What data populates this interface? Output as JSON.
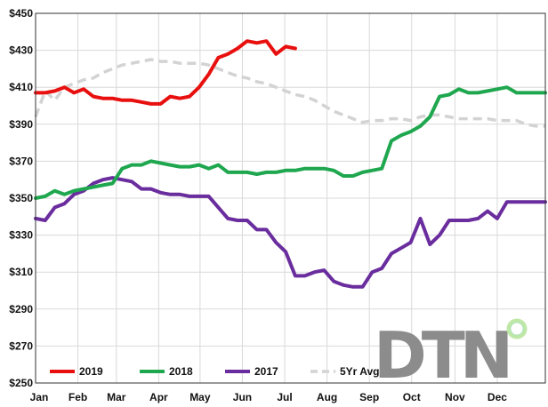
{
  "chart_data": {
    "type": "line",
    "title": "",
    "xlabel": "",
    "ylabel": "",
    "ylim": [
      250,
      450
    ],
    "yticks": [
      250,
      270,
      290,
      310,
      330,
      350,
      370,
      390,
      410,
      430,
      450
    ],
    "ytick_labels": [
      "$250",
      "$270",
      "$290",
      "$310",
      "$330",
      "$350",
      "$370",
      "$390",
      "$410",
      "$430",
      "$450"
    ],
    "xlim": [
      0,
      53
    ],
    "x_tick_labels": [
      "Jan",
      "Feb",
      "Mar",
      "Apr",
      "May",
      "Jun",
      "Jul",
      "Aug",
      "Sep",
      "Oct",
      "Nov",
      "Dec"
    ],
    "x_tick_weeks": [
      0,
      4.4,
      8.4,
      12.8,
      17.1,
      21.5,
      25.9,
      30.3,
      34.7,
      39.1,
      43.6,
      48
    ],
    "grid": true,
    "legend_position": "bottom-left",
    "series": [
      {
        "name": "2019",
        "color": "#e8100f",
        "dash": false,
        "x": [
          0,
          1,
          2,
          3,
          4,
          5,
          6,
          7,
          8,
          9,
          10,
          11,
          12,
          13,
          14,
          15,
          16,
          17,
          18,
          19,
          20,
          21,
          22,
          23,
          24,
          25,
          26,
          27
        ],
        "y": [
          407,
          407,
          408,
          410,
          407,
          409,
          405,
          404,
          404,
          403,
          403,
          402,
          401,
          401,
          405,
          404,
          405,
          410,
          417,
          426,
          428,
          431,
          435,
          434,
          435,
          428,
          432,
          431
        ]
      },
      {
        "name": "2018",
        "color": "#1fa74f",
        "dash": false,
        "x": [
          0,
          1,
          2,
          3,
          4,
          5,
          6,
          7,
          8,
          9,
          10,
          11,
          12,
          13,
          14,
          15,
          16,
          17,
          18,
          19,
          20,
          21,
          22,
          23,
          24,
          25,
          26,
          27,
          28,
          29,
          30,
          31,
          32,
          33,
          34,
          35,
          36,
          37,
          38,
          39,
          40,
          41,
          42,
          43,
          44,
          45,
          46,
          47,
          48,
          49,
          50,
          51,
          52,
          53
        ],
        "y": [
          350,
          351,
          354,
          352,
          354,
          355,
          356,
          357,
          358,
          366,
          368,
          368,
          370,
          369,
          368,
          367,
          367,
          368,
          366,
          368,
          364,
          364,
          364,
          363,
          364,
          364,
          365,
          365,
          366,
          366,
          366,
          365,
          362,
          362,
          364,
          365,
          366,
          381,
          384,
          386,
          389,
          394,
          405,
          406,
          409,
          407,
          407,
          408,
          409,
          410,
          407,
          407,
          407,
          407
        ]
      },
      {
        "name": "2017",
        "color": "#6a2d9e",
        "dash": false,
        "x": [
          0,
          1,
          2,
          3,
          4,
          5,
          6,
          7,
          8,
          9,
          10,
          11,
          12,
          13,
          14,
          15,
          16,
          17,
          18,
          19,
          20,
          21,
          22,
          23,
          24,
          25,
          26,
          27,
          28,
          29,
          30,
          31,
          32,
          33,
          34,
          35,
          36,
          37,
          38,
          39,
          40,
          41,
          42,
          43,
          44,
          45,
          46,
          47,
          48,
          49,
          50,
          51,
          52,
          53
        ],
        "y": [
          339,
          338,
          345,
          347,
          352,
          354,
          358,
          360,
          361,
          360,
          359,
          355,
          355,
          353,
          352,
          352,
          351,
          351,
          351,
          345,
          339,
          338,
          338,
          333,
          333,
          326,
          321,
          308,
          308,
          310,
          311,
          305,
          303,
          302,
          302,
          310,
          312,
          320,
          323,
          326,
          339,
          325,
          330,
          338,
          338,
          338,
          339,
          343,
          339,
          348,
          348,
          348,
          348,
          348
        ]
      },
      {
        "name": "5Yr Avg",
        "color": "#d3d3d3",
        "dash": true,
        "x": [
          0,
          1,
          2,
          3,
          4,
          5,
          6,
          7,
          8,
          9,
          10,
          11,
          12,
          13,
          14,
          15,
          16,
          17,
          18,
          19,
          20,
          21,
          22,
          23,
          24,
          25,
          26,
          27,
          28,
          29,
          30,
          31,
          32,
          33,
          34,
          35,
          36,
          37,
          38,
          39,
          40,
          41,
          42,
          43,
          44,
          45,
          46,
          47,
          48,
          49,
          50,
          51,
          52,
          53
        ],
        "y": [
          394,
          408,
          403,
          410,
          412,
          414,
          415,
          418,
          420,
          422,
          423,
          424,
          425,
          424,
          424,
          423,
          423,
          423,
          422,
          420,
          418,
          416,
          415,
          413,
          412,
          410,
          408,
          406,
          405,
          403,
          400,
          397,
          395,
          393,
          391,
          392,
          392,
          393,
          393,
          392,
          394,
          395,
          395,
          394,
          393,
          393,
          393,
          393,
          392,
          392,
          392,
          390,
          389,
          389
        ]
      }
    ],
    "legend": [
      {
        "label": "2019",
        "color": "#e8100f",
        "dash": false
      },
      {
        "label": "2018",
        "color": "#1fa74f",
        "dash": false
      },
      {
        "label": "2017",
        "color": "#6a2d9e",
        "dash": false
      },
      {
        "label": "5Yr Avg",
        "color": "#d3d3d3",
        "dash": true
      }
    ]
  },
  "watermark": {
    "text": "DTN",
    "color": "#8c8c8c",
    "dot_gradient": [
      "#8fd6f0",
      "#bfe8a6"
    ]
  }
}
